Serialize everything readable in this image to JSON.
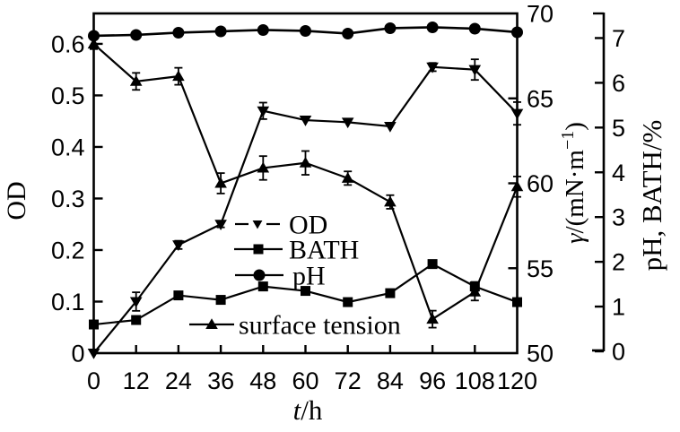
{
  "chart_data": {
    "type": "line",
    "title": "",
    "xlabel": "t/h",
    "x": [
      0,
      12,
      24,
      36,
      48,
      60,
      72,
      84,
      96,
      108,
      120
    ],
    "x_tick_labels": [
      "0",
      "12",
      "24",
      "36",
      "48",
      "60",
      "72",
      "84",
      "96",
      "108",
      "120"
    ],
    "axes": {
      "left": {
        "label": "OD",
        "range": [
          0,
          0.659
        ],
        "ticks": [
          0,
          0.1,
          0.2,
          0.3,
          0.4,
          0.5,
          0.6
        ],
        "tick_labels": [
          "0",
          "0.1",
          "0.2",
          "0.3",
          "0.4",
          "0.5",
          "0.6"
        ]
      },
      "right_inner": {
        "label": "γ/(mN·m⁻¹)",
        "range": [
          50,
          70
        ],
        "ticks": [
          50,
          55,
          60,
          65,
          70
        ],
        "tick_labels": [
          "50",
          "55",
          "60",
          "65",
          "70"
        ]
      },
      "right_outer": {
        "label": "pH, BATH/%",
        "range": [
          0,
          7.57
        ],
        "ticks": [
          0,
          1,
          2,
          3,
          4,
          5,
          6,
          7
        ],
        "tick_labels": [
          "0",
          "1",
          "2",
          "3",
          "4",
          "5",
          "6",
          "7"
        ]
      }
    },
    "series": [
      {
        "name": "OD",
        "axis": "left",
        "marker": "triangle-down",
        "values": [
          0,
          0.1,
          0.21,
          0.25,
          0.47,
          0.452,
          0.448,
          0.44,
          0.555,
          0.55,
          0.465
        ],
        "errors": [
          0,
          0.018,
          0.008,
          0.006,
          0.016,
          0,
          0,
          0,
          0.008,
          0.02,
          0.022
        ]
      },
      {
        "name": "BATH",
        "axis": "right_outer",
        "marker": "square",
        "values": [
          0.6,
          0.7,
          1.25,
          1.15,
          1.45,
          1.35,
          1.1,
          1.3,
          1.95,
          1.45,
          1.1
        ],
        "errors": [
          0,
          0,
          0,
          0,
          0,
          0,
          0,
          0,
          0,
          0.1,
          0
        ]
      },
      {
        "name": "pH",
        "axis": "right_outer",
        "marker": "circle",
        "values": [
          7.05,
          7.07,
          7.12,
          7.15,
          7.18,
          7.16,
          7.1,
          7.22,
          7.24,
          7.21,
          7.13
        ],
        "errors": [
          0,
          0,
          0,
          0,
          0,
          0,
          0,
          0,
          0,
          0,
          0
        ]
      },
      {
        "name": "surface tension",
        "axis": "right_inner",
        "marker": "triangle-up",
        "values": [
          68.2,
          66.0,
          66.3,
          60.0,
          60.9,
          61.2,
          60.3,
          58.9,
          52.0,
          53.6,
          59.8
        ],
        "errors": [
          0.3,
          0.5,
          0.5,
          0.6,
          0.7,
          0.7,
          0.4,
          0.4,
          0.5,
          0.5,
          0.6
        ]
      }
    ],
    "legend_position": "inside-center",
    "grid": false,
    "colors": {
      "foreground": "#000000",
      "background": "#ffffff"
    }
  }
}
